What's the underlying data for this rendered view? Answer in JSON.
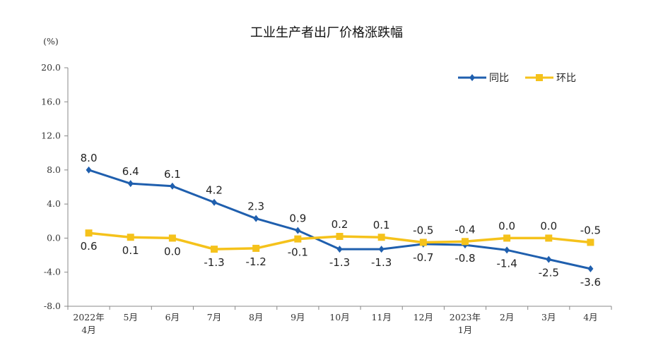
{
  "chart_data": {
    "type": "line",
    "title": "工业生产者出厂价格涨跌幅",
    "ylabel": "(%)",
    "ylim": [
      -8,
      20
    ],
    "yticks": [
      "20.0",
      "16.0",
      "12.0",
      "8.0",
      "4.0",
      "0.0",
      "-4.0",
      "-8.0"
    ],
    "ytick_values": [
      20,
      16,
      12,
      8,
      4,
      0,
      -4,
      -8
    ],
    "categories": [
      [
        "2022年",
        "4月"
      ],
      [
        "5月"
      ],
      [
        "6月"
      ],
      [
        "7月"
      ],
      [
        "8月"
      ],
      [
        "9月"
      ],
      [
        "10月"
      ],
      [
        "11月"
      ],
      [
        "12月"
      ],
      [
        "2023年",
        "1月"
      ],
      [
        "2月"
      ],
      [
        "3月"
      ],
      [
        "4月"
      ]
    ],
    "legend_position": "top-right",
    "grid": false,
    "series": [
      {
        "name": "同比",
        "color": "#1f5fae",
        "marker": "diamond",
        "values": [
          8.0,
          6.4,
          6.1,
          4.2,
          2.3,
          0.9,
          -1.3,
          -1.3,
          -0.7,
          -0.8,
          -1.4,
          -2.5,
          -3.6
        ],
        "labels": [
          "8.0",
          "6.4",
          "6.1",
          "4.2",
          "2.3",
          "0.9",
          "-1.3",
          "-1.3",
          "-0.7",
          "-0.8",
          "-1.4",
          "-2.5",
          "-3.6"
        ]
      },
      {
        "name": "环比",
        "color": "#f5c21b",
        "marker": "square",
        "values": [
          0.6,
          0.1,
          0.0,
          -1.3,
          -1.2,
          -0.1,
          0.2,
          0.1,
          -0.5,
          -0.4,
          0.0,
          0.0,
          -0.5
        ],
        "labels": [
          "0.6",
          "0.1",
          "0.0",
          "-1.3",
          "-1.2",
          "-0.1",
          "0.2",
          "0.1",
          "-0.5",
          "-0.4",
          "0.0",
          "0.0",
          "-0.5"
        ]
      }
    ]
  }
}
